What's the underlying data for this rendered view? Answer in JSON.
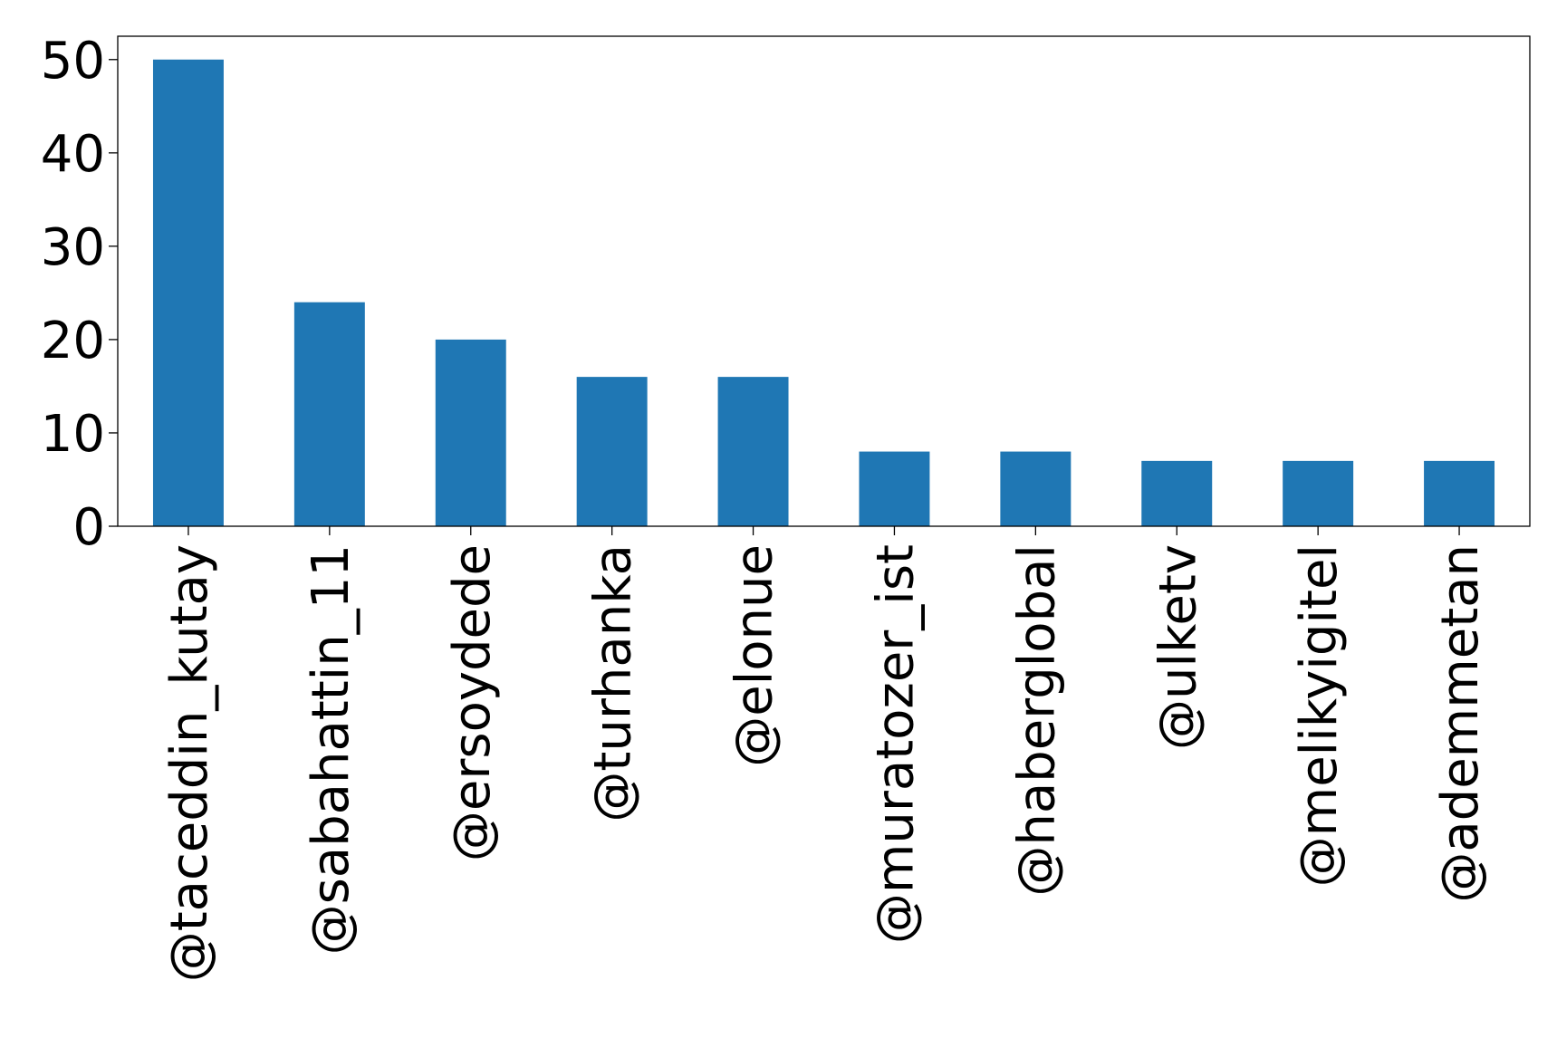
{
  "chart_data": {
    "type": "bar",
    "title": "",
    "xlabel": "",
    "ylabel": "",
    "categories": [
      "@taceddin_kutay",
      "@sabahattin_11",
      "@ersoydede",
      "@turhanka",
      "@elonue",
      "@muratozer_ist",
      "@haberglobal",
      "@ulketv",
      "@melikyigitel",
      "@ademmetan"
    ],
    "values": [
      50,
      24,
      20,
      16,
      16,
      8,
      8,
      7,
      7,
      7
    ],
    "ylim": [
      0,
      52.5
    ],
    "yticks": [
      0,
      10,
      20,
      30,
      40,
      50
    ],
    "grid": false,
    "legend": "none",
    "bar_color": "#1f77b4"
  }
}
